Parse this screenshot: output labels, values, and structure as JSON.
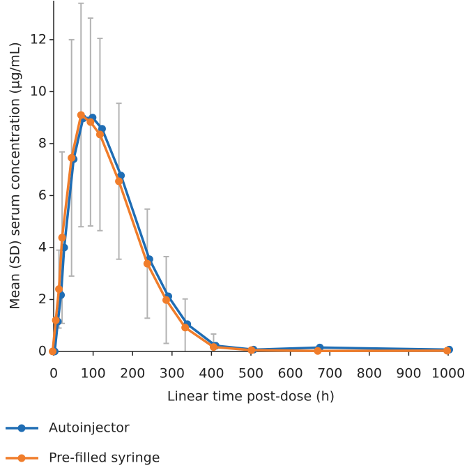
{
  "chart_data": {
    "type": "line",
    "x": [
      0,
      8,
      16,
      24,
      48,
      72,
      96,
      120,
      168,
      240,
      288,
      336,
      408,
      504,
      672,
      1000
    ],
    "series": [
      {
        "name": "Autoinjector",
        "color": "#1f6db4",
        "values": [
          0,
          1.15,
          2.17,
          4.0,
          7.4,
          8.97,
          9.0,
          8.57,
          6.77,
          3.55,
          2.12,
          1.05,
          0.22,
          0.07,
          0.15,
          0.07
        ]
      },
      {
        "name": "Pre-filled syringe",
        "color": "#f07d2b",
        "values": [
          0,
          1.2,
          2.4,
          4.38,
          7.45,
          9.1,
          8.83,
          8.35,
          6.55,
          3.38,
          1.98,
          0.92,
          0.17,
          0.05,
          0.02,
          0.03
        ],
        "errors": [
          null,
          null,
          1.5,
          3.3,
          4.55,
          4.3,
          4.0,
          3.7,
          3.0,
          2.1,
          1.67,
          1.1,
          0.5,
          null,
          null,
          null
        ]
      }
    ],
    "error_color": "#b3b3b3",
    "xlabel": "Linear time post-dose (h)",
    "ylabel": "Mean (SD) serum concentration (µg/mL)",
    "xlim": [
      0,
      1000
    ],
    "xticks": [
      0,
      100,
      200,
      300,
      400,
      500,
      600,
      700,
      800,
      900,
      1000
    ],
    "ylim": [
      0,
      13.5
    ],
    "yticks": [
      0,
      2,
      4,
      6,
      8,
      10,
      12
    ],
    "legend": "bottom-left"
  }
}
